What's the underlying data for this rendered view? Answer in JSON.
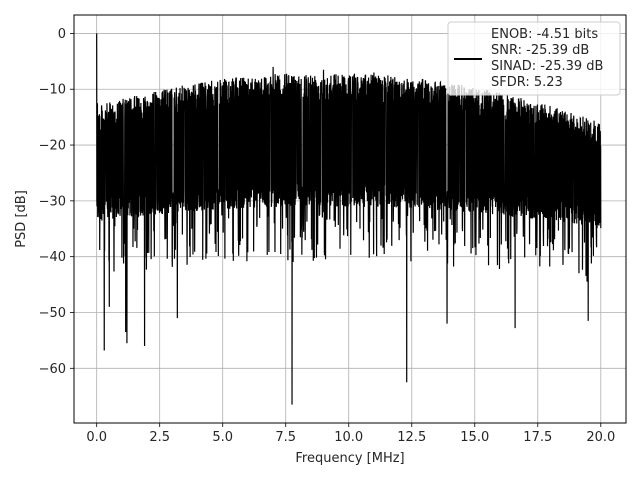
{
  "chart_data": {
    "type": "line",
    "title": "",
    "xlabel": "Frequency [MHz]",
    "ylabel": "PSD [dB]",
    "xlim": [
      -0.9,
      21.0
    ],
    "ylim": [
      -69.8,
      3.3
    ],
    "xticks": [
      0.0,
      2.5,
      5.0,
      7.5,
      10.0,
      12.5,
      15.0,
      17.5,
      20.0
    ],
    "xtick_labels": [
      "0.0",
      "2.5",
      "5.0",
      "7.5",
      "10.0",
      "12.5",
      "15.0",
      "17.5",
      "20.0"
    ],
    "yticks": [
      0,
      -10,
      -20,
      -30,
      -40,
      -50,
      -60
    ],
    "ytick_labels": [
      "0",
      "−10",
      "−20",
      "−30",
      "−40",
      "−50",
      "−60"
    ],
    "grid": true,
    "legend_position": "top-right",
    "legend_lines": [
      "ENOB: -4.51 bits",
      "SNR: -25.39 dB",
      "SINAD: -25.39 dB",
      "SFDR: 5.23"
    ],
    "line_color": "#000000",
    "x_range": [
      0.0,
      20.0
    ],
    "peaks": [
      {
        "x": 0.0,
        "y": 0.0
      },
      {
        "x": 0.03,
        "y": -12.5
      },
      {
        "x": 0.3,
        "y": -56.8
      },
      {
        "x": 0.5,
        "y": -49.0
      },
      {
        "x": 1.15,
        "y": -53.5
      },
      {
        "x": 1.2,
        "y": -55.5
      },
      {
        "x": 1.9,
        "y": -56.0
      },
      {
        "x": 3.2,
        "y": -51.0
      },
      {
        "x": 7.75,
        "y": -66.5
      },
      {
        "x": 12.3,
        "y": -62.5
      },
      {
        "x": 13.9,
        "y": -52.0
      },
      {
        "x": 16.6,
        "y": -52.8
      },
      {
        "x": 19.5,
        "y": -51.5
      },
      {
        "x": 7.0,
        "y": -6.0
      },
      {
        "x": 9.0,
        "y": -6.5
      },
      {
        "x": 11.0,
        "y": -7.0
      }
    ]
  }
}
